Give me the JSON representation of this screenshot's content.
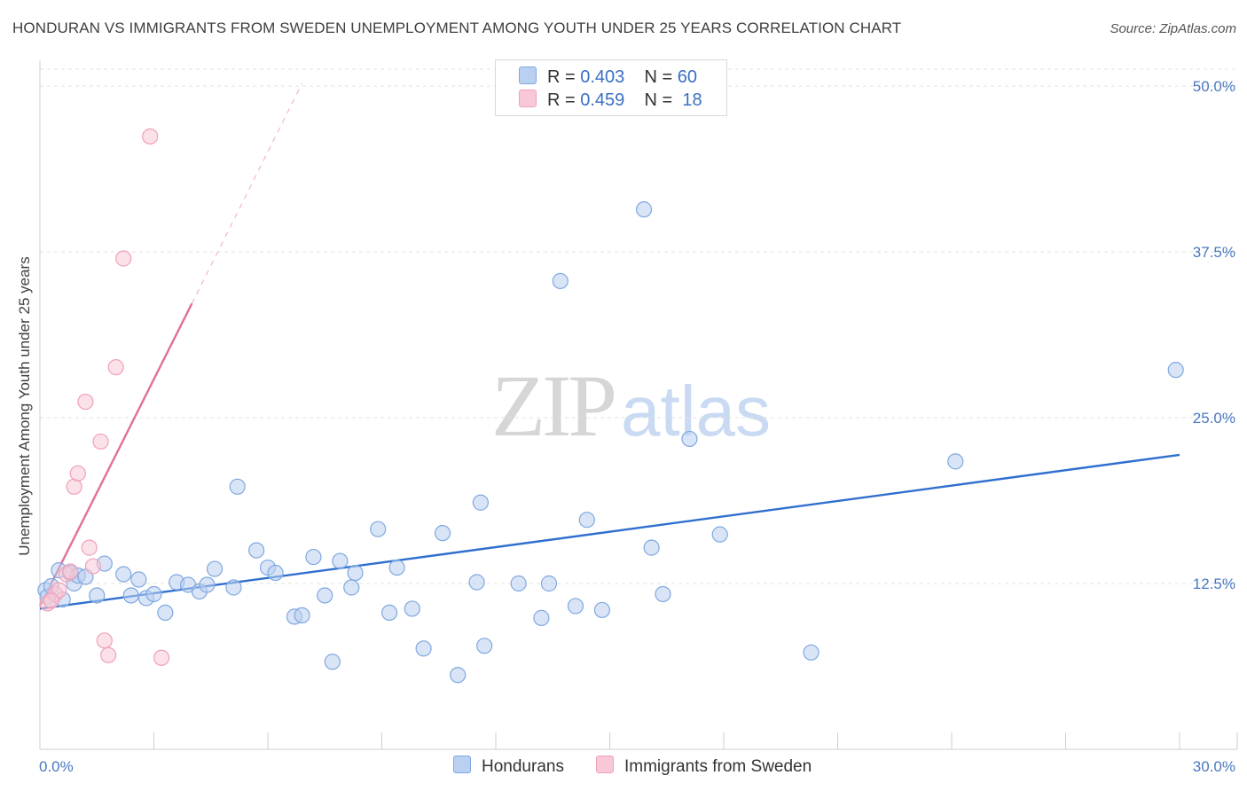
{
  "chart_data": {
    "type": "scatter",
    "title": "HONDURAN VS IMMIGRANTS FROM SWEDEN UNEMPLOYMENT AMONG YOUTH UNDER 25 YEARS CORRELATION CHART",
    "source": "Source: ZipAtlas.com",
    "ylabel": "Unemployment Among Youth under 25 years",
    "xlim": [
      0,
      30
    ],
    "ylim": [
      0,
      52.5
    ],
    "x_tick_labels": [
      "0.0%",
      "30.0%"
    ],
    "y_ticks": [
      12.5,
      25.0,
      37.5,
      50.0
    ],
    "y_tick_labels": [
      "12.5%",
      "25.0%",
      "37.5%",
      "50.0%"
    ],
    "watermark": {
      "zip": "ZIP",
      "atlas": "atlas"
    },
    "legend": [
      {
        "r_label": "R =",
        "r": "0.403",
        "n_label": "N =",
        "n": "60"
      },
      {
        "r_label": "R =",
        "r": "0.459",
        "n_label": "N =",
        "n": "18"
      }
    ],
    "series": [
      {
        "name": "Hondurans",
        "color": "#7fa8e0",
        "fill": "#b9d0f0",
        "line_color": "#2f6fcf",
        "trend": {
          "x0": 0.0,
          "y0": 10.6,
          "x1": 30.0,
          "y1": 22.2
        },
        "points": [
          [
            0.15,
            12.0
          ],
          [
            0.2,
            11.5
          ],
          [
            0.3,
            12.3
          ],
          [
            0.5,
            13.5
          ],
          [
            0.6,
            11.3
          ],
          [
            0.8,
            13.3
          ],
          [
            0.9,
            12.5
          ],
          [
            1.0,
            13.1
          ],
          [
            1.2,
            13.0
          ],
          [
            1.5,
            11.6
          ],
          [
            1.7,
            14.0
          ],
          [
            2.2,
            13.2
          ],
          [
            2.4,
            11.6
          ],
          [
            2.6,
            12.8
          ],
          [
            2.8,
            11.4
          ],
          [
            3.0,
            11.7
          ],
          [
            3.3,
            10.3
          ],
          [
            3.6,
            12.6
          ],
          [
            3.9,
            12.4
          ],
          [
            4.2,
            11.9
          ],
          [
            4.4,
            12.4
          ],
          [
            4.6,
            13.6
          ],
          [
            5.1,
            12.2
          ],
          [
            5.7,
            15.0
          ],
          [
            5.2,
            19.8
          ],
          [
            6.0,
            13.7
          ],
          [
            6.2,
            13.3
          ],
          [
            6.7,
            10.0
          ],
          [
            6.9,
            10.1
          ],
          [
            7.2,
            14.5
          ],
          [
            7.5,
            11.6
          ],
          [
            7.7,
            6.6
          ],
          [
            7.9,
            14.2
          ],
          [
            8.2,
            12.2
          ],
          [
            8.3,
            13.3
          ],
          [
            8.9,
            16.6
          ],
          [
            9.4,
            13.7
          ],
          [
            9.2,
            10.3
          ],
          [
            9.8,
            10.6
          ],
          [
            10.1,
            7.6
          ],
          [
            10.6,
            16.3
          ],
          [
            11.0,
            5.6
          ],
          [
            11.5,
            12.6
          ],
          [
            11.6,
            18.6
          ],
          [
            11.7,
            7.8
          ],
          [
            12.6,
            12.5
          ],
          [
            13.2,
            9.9
          ],
          [
            13.4,
            12.5
          ],
          [
            13.7,
            35.3
          ],
          [
            14.1,
            10.8
          ],
          [
            14.4,
            17.3
          ],
          [
            14.8,
            10.5
          ],
          [
            15.9,
            40.7
          ],
          [
            16.1,
            15.2
          ],
          [
            16.4,
            11.7
          ],
          [
            17.1,
            23.4
          ],
          [
            17.9,
            16.2
          ],
          [
            20.3,
            7.3
          ],
          [
            24.1,
            21.7
          ],
          [
            29.9,
            28.6
          ]
        ]
      },
      {
        "name": "Immigrants from Sweden",
        "color": "#f0a0b8",
        "fill": "#f8c8d6",
        "line_color": "#e07098",
        "trend": {
          "x0": 0.0,
          "y0": 10.8,
          "x1": 4.0,
          "y1": 33.6
        },
        "trend_ext": {
          "x0": 4.0,
          "y0": 33.6,
          "x1": 6.9,
          "y1": 50.2
        },
        "points": [
          [
            0.2,
            11.0
          ],
          [
            0.4,
            11.7
          ],
          [
            0.5,
            12.0
          ],
          [
            0.7,
            13.2
          ],
          [
            0.8,
            13.4
          ],
          [
            0.9,
            19.8
          ],
          [
            1.0,
            20.8
          ],
          [
            1.2,
            26.2
          ],
          [
            1.3,
            15.2
          ],
          [
            1.4,
            13.8
          ],
          [
            1.6,
            23.2
          ],
          [
            1.7,
            8.2
          ],
          [
            1.8,
            7.1
          ],
          [
            2.0,
            28.8
          ],
          [
            2.2,
            37.0
          ],
          [
            2.9,
            46.2
          ],
          [
            3.2,
            6.9
          ],
          [
            0.3,
            11.2
          ]
        ]
      }
    ]
  }
}
